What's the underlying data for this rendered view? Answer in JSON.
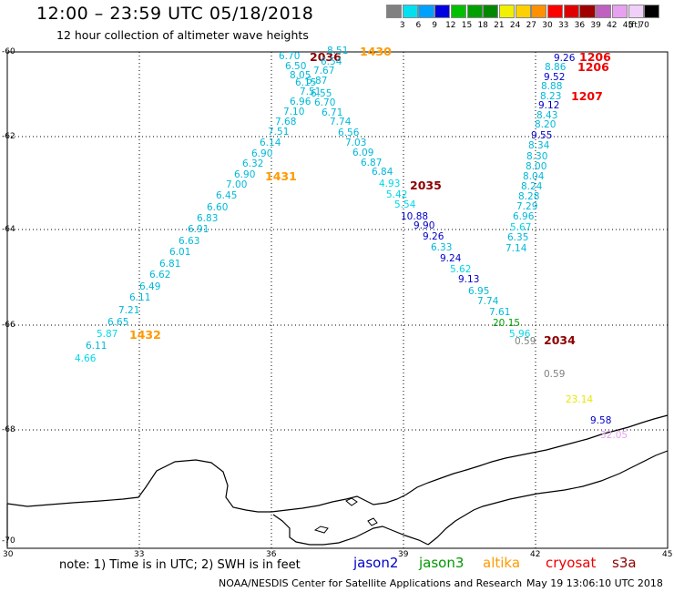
{
  "header": {
    "title": "12:00 – 23:59 UTC 05/18/2018",
    "subtitle": "12 hour collection of altimeter wave heights"
  },
  "legend": {
    "colors": [
      "#808080",
      "#00e0f0",
      "#00a0ff",
      "#0000e0",
      "#00c000",
      "#00a000",
      "#008800",
      "#f0f000",
      "#ffd000",
      "#ff9000",
      "#ff0000",
      "#e00000",
      "#a00000",
      "#c060c0",
      "#e8a0f0",
      "#f0d0f8",
      "#000000"
    ],
    "numbers": [
      "3",
      "6",
      "9",
      "12",
      "15",
      "18",
      "21",
      "24",
      "27",
      "30",
      "33",
      "36",
      "39",
      "42",
      "45",
      "70",
      "(ft)"
    ]
  },
  "axes": {
    "lat_labels": [
      "-60",
      "-62",
      "-64",
      "-66",
      "-68",
      "-70"
    ],
    "lon_labels": [
      "30",
      "33",
      "36",
      "39",
      "42",
      "45"
    ]
  },
  "passes": {
    "times": [
      {
        "text": "2036",
        "color": "#8b0000"
      },
      {
        "text": "1430",
        "color": "#ff9900"
      },
      {
        "text": "1206",
        "color": "#ee0000"
      },
      {
        "text": "1206",
        "color": "#ee0000"
      },
      {
        "text": "1207",
        "color": "#ee0000"
      },
      {
        "text": "1431",
        "color": "#ff9900"
      },
      {
        "text": "2035",
        "color": "#8b0000"
      },
      {
        "text": "1432",
        "color": "#ff9900"
      },
      {
        "text": "2034",
        "color": "#8b0000"
      }
    ],
    "values": [
      {
        "t": "6.70",
        "c": "#00b8d8"
      },
      {
        "t": "8.51",
        "c": "#00b8d8"
      },
      {
        "t": "6.50",
        "c": "#00b8d8"
      },
      {
        "t": "6.54",
        "c": "#00b8d8"
      },
      {
        "t": "8.05",
        "c": "#00b8d8"
      },
      {
        "t": "7.67",
        "c": "#00b8d8"
      },
      {
        "t": "6.15",
        "c": "#00b8d8"
      },
      {
        "t": "6.87",
        "c": "#00b8d8"
      },
      {
        "t": "7.51",
        "c": "#00b8d8"
      },
      {
        "t": "6.55",
        "c": "#00b8d8"
      },
      {
        "t": "6.96",
        "c": "#00b8d8"
      },
      {
        "t": "6.70",
        "c": "#00b8d8"
      },
      {
        "t": "7.10",
        "c": "#00b8d8"
      },
      {
        "t": "6.71",
        "c": "#00b8d8"
      },
      {
        "t": "7.68",
        "c": "#00b8d8"
      },
      {
        "t": "7.74",
        "c": "#00b8d8"
      },
      {
        "t": "7.51",
        "c": "#00b8d8"
      },
      {
        "t": "6.56",
        "c": "#00b8d8"
      },
      {
        "t": "6.14",
        "c": "#00b8d8"
      },
      {
        "t": "7.03",
        "c": "#00b8d8"
      },
      {
        "t": "6.90",
        "c": "#00b8d8"
      },
      {
        "t": "6.09",
        "c": "#00b8d8"
      },
      {
        "t": "6.32",
        "c": "#00b8d8"
      },
      {
        "t": "6.87",
        "c": "#00b8d8"
      },
      {
        "t": "6.90",
        "c": "#00b8d8"
      },
      {
        "t": "6.84",
        "c": "#00b8d8"
      },
      {
        "t": "7.00",
        "c": "#00b8d8"
      },
      {
        "t": "4.93",
        "c": "#00d8e8"
      },
      {
        "t": "6.45",
        "c": "#00b8d8"
      },
      {
        "t": "5.42",
        "c": "#00d8e8"
      },
      {
        "t": "6.60",
        "c": "#00b8d8"
      },
      {
        "t": "5.54",
        "c": "#00d8e8"
      },
      {
        "t": "6.83",
        "c": "#00b8d8"
      },
      {
        "t": "10.88",
        "c": "#0000c8"
      },
      {
        "t": "6.91",
        "c": "#00b8d8"
      },
      {
        "t": "9.90",
        "c": "#0000c8"
      },
      {
        "t": "6.63",
        "c": "#00b8d8"
      },
      {
        "t": "9.26",
        "c": "#0000c8"
      },
      {
        "t": "6.01",
        "c": "#00b8d8"
      },
      {
        "t": "6.33",
        "c": "#00b8d8"
      },
      {
        "t": "6.81",
        "c": "#00b8d8"
      },
      {
        "t": "9.24",
        "c": "#0000c8"
      },
      {
        "t": "6.62",
        "c": "#00b8d8"
      },
      {
        "t": "5.62",
        "c": "#00d8e8"
      },
      {
        "t": "6.49",
        "c": "#00b8d8"
      },
      {
        "t": "9.13",
        "c": "#0000c8"
      },
      {
        "t": "6.11",
        "c": "#00b8d8"
      },
      {
        "t": "6.95",
        "c": "#00b8d8"
      },
      {
        "t": "7.21",
        "c": "#00b8d8"
      },
      {
        "t": "7.74",
        "c": "#00b8d8"
      },
      {
        "t": "6.65",
        "c": "#00b8d8"
      },
      {
        "t": "7.61",
        "c": "#00b8d8"
      },
      {
        "t": "5.87",
        "c": "#00d8e8"
      },
      {
        "t": "20.15",
        "c": "#00a000"
      },
      {
        "t": "6.11",
        "c": "#00b8d8"
      },
      {
        "t": "5.96",
        "c": "#00d8e8"
      },
      {
        "t": "4.66",
        "c": "#00d8e8"
      },
      {
        "t": "0.59",
        "c": "#808080"
      },
      {
        "t": "9.26",
        "c": "#0000c8"
      },
      {
        "t": "8.86",
        "c": "#00b8d8"
      },
      {
        "t": "9.52",
        "c": "#0000c8"
      },
      {
        "t": "8.88",
        "c": "#00b8d8"
      },
      {
        "t": "8.23",
        "c": "#00b8d8"
      },
      {
        "t": "9.12",
        "c": "#0000c8"
      },
      {
        "t": "8.43",
        "c": "#00b8d8"
      },
      {
        "t": "8.20",
        "c": "#00b8d8"
      },
      {
        "t": "9.55",
        "c": "#0000c8"
      },
      {
        "t": "8.34",
        "c": "#00b8d8"
      },
      {
        "t": "8.30",
        "c": "#00b8d8"
      },
      {
        "t": "8.00",
        "c": "#00b8d8"
      },
      {
        "t": "8.04",
        "c": "#00b8d8"
      },
      {
        "t": "8.24",
        "c": "#00b8d8"
      },
      {
        "t": "8.28",
        "c": "#00b8d8"
      },
      {
        "t": "7.29",
        "c": "#00b8d8"
      },
      {
        "t": "6.96",
        "c": "#00b8d8"
      },
      {
        "t": "5.67",
        "c": "#00d8e8"
      },
      {
        "t": "6.35",
        "c": "#00b8d8"
      },
      {
        "t": "7.14",
        "c": "#00b8d8"
      },
      {
        "t": "0.59",
        "c": "#808080"
      },
      {
        "t": "23.14",
        "c": "#e8e800"
      },
      {
        "t": "9.58",
        "c": "#0000c8"
      },
      {
        "t": "32.05",
        "c": "#e8a0f0"
      }
    ]
  },
  "footer": {
    "note": "note: 1) Time is in UTC; 2) SWH is in feet",
    "satellites": [
      {
        "name": "jason2",
        "color": "#0000cc"
      },
      {
        "name": "jason3",
        "color": "#009900"
      },
      {
        "name": "altika",
        "color": "#ff9900"
      },
      {
        "name": "cryosat",
        "color": "#ee0000"
      },
      {
        "name": "s3a",
        "color": "#8b0000"
      }
    ],
    "credit": "NOAA/NESDIS Center for Satellite Applications and Research",
    "timestamp": "May 19 13:06:10 UTC 2018"
  }
}
